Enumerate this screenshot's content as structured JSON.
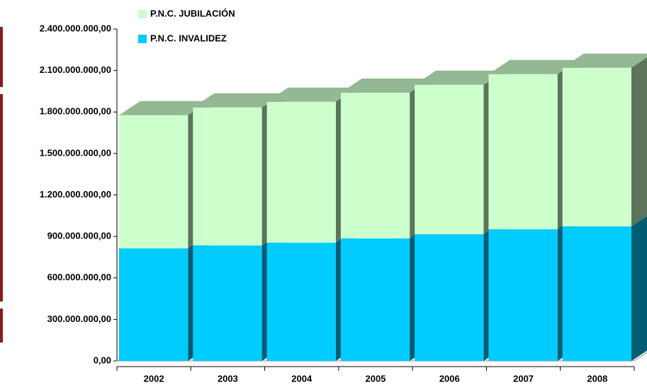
{
  "chart_data": {
    "type": "bar",
    "stacked": true,
    "categories": [
      "2002",
      "2003",
      "2004",
      "2005",
      "2006",
      "2007",
      "2008"
    ],
    "series": [
      {
        "name": "P.N.C. JUBILACIÓN",
        "color": "#ccffcc",
        "values": [
          963000000,
          998000000,
          1019000000,
          1054000000,
          1081000000,
          1122000000,
          1147000000
        ]
      },
      {
        "name": "P.N.C. INVALIDEZ",
        "color": "#00ccff",
        "values": [
          814000000,
          835000000,
          855000000,
          886000000,
          916000000,
          952000000,
          973000000
        ]
      }
    ],
    "ylim": [
      0,
      2400000000
    ],
    "yticks": [
      {
        "value": 0,
        "label": "0,00"
      },
      {
        "value": 300000000,
        "label": "300.000.000,00"
      },
      {
        "value": 600000000,
        "label": "600.000.000,00"
      },
      {
        "value": 900000000,
        "label": "900.000.000,00"
      },
      {
        "value": 1200000000,
        "label": "1.200.000.000,00"
      },
      {
        "value": 1500000000,
        "label": "1.500.000.000,00"
      },
      {
        "value": 1800000000,
        "label": "1.800.000.000,00"
      },
      {
        "value": 2100000000,
        "label": "2.100.000.000,00"
      },
      {
        "value": 2400000000,
        "label": "2.400.000.000,00"
      }
    ]
  }
}
